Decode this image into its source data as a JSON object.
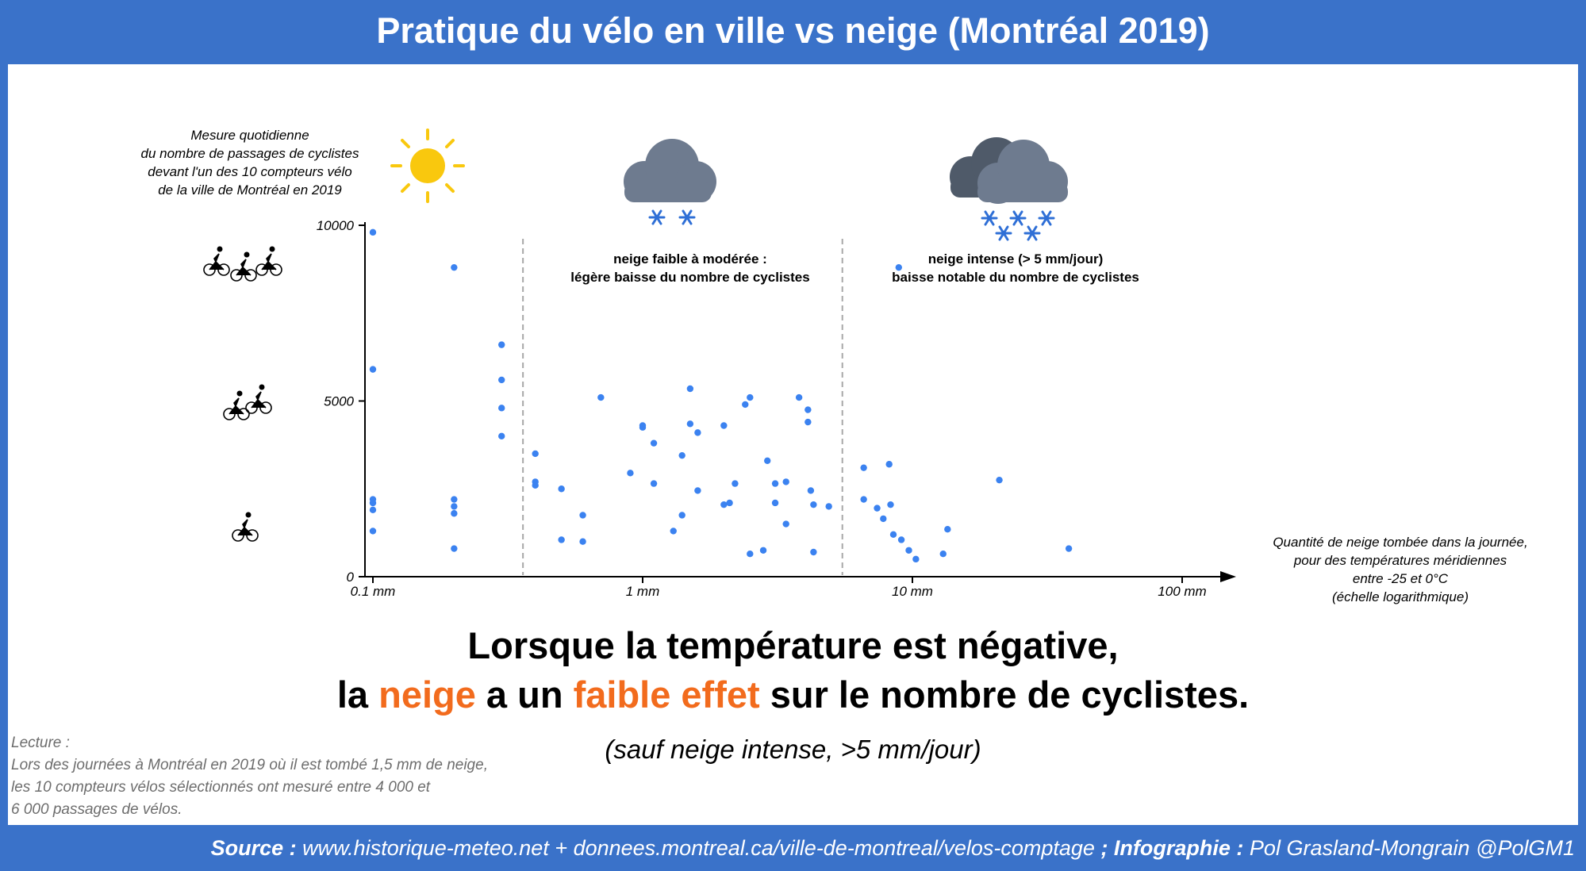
{
  "header": {
    "title": "Pratique du vélo en ville vs neige (Montréal 2019)"
  },
  "annotations": {
    "left_note": "Mesure quotidienne\ndu nombre de passages de cyclistes\ndevant l'un des 10 compteurs vélo\nde la ville de Montréal en 2019",
    "right_note": "Quantité de neige tombée dans la journée,\npour des températures méridiennes\nentre -25 et 0°C\n(échelle logarithmique)",
    "region_moderate": "neige faible à modérée :\nlégère baisse du nombre de cyclistes",
    "region_intense": "neige intense (> 5 mm/jour)\nbaisse notable du nombre de cyclistes"
  },
  "headline": {
    "line1": "Lorsque la température est négative,",
    "line2_a": "la ",
    "line2_b": "neige",
    "line2_c": " a un ",
    "line2_d": "faible effet",
    "line2_e": " sur le nombre de cyclistes.",
    "highlight_color": "#f26b1d"
  },
  "subline": "(sauf neige intense, >5 mm/jour)",
  "reading": {
    "title": "Lecture :",
    "lines": [
      "Lors des journées à Montréal en 2019 où il est tombé 1,5 mm de neige,",
      "les 10 compteurs vélos sélectionnés ont mesuré entre 4 000 et",
      "6 000 passages de vélos."
    ]
  },
  "footer": {
    "source_label": "Source :",
    "source_text": " www.historique-meteo.net + donnees.montreal.ca/ville-de-montreal/velos-comptage ",
    "credit_label": "; Infographie :",
    "credit_text": " Pol Grasland-Mongrain @PolGM1"
  },
  "colors": {
    "background": "#3a72c9",
    "point": "#3b82f0",
    "sun": "#f9c80e",
    "cloud": "#6e7b8f",
    "cloud_dark": "#4f5a69",
    "snowflake": "#2f6fd6",
    "divider": "#a8a8a8"
  },
  "icons": {
    "sun": "sun-icon",
    "cloud_light_snow": "cloud-light-snow-icon",
    "cloud_heavy_snow": "cloud-heavy-snow-icon",
    "cyclists_many": "three-cyclists-icon",
    "cyclists_mid": "two-cyclists-icon",
    "cyclists_few": "one-cyclist-icon"
  },
  "chart_data": {
    "type": "scatter",
    "x_scale": "log",
    "xlim": [
      0.1,
      150
    ],
    "ylim": [
      0,
      10000
    ],
    "x_ticks": [
      {
        "value": 0.1,
        "label": "0.1 mm"
      },
      {
        "value": 1,
        "label": "1 mm"
      },
      {
        "value": 10,
        "label": "10 mm"
      },
      {
        "value": 100,
        "label": "100 mm"
      }
    ],
    "y_ticks": [
      {
        "value": 0,
        "label": "0"
      },
      {
        "value": 5000,
        "label": "5000"
      },
      {
        "value": 10000,
        "label": "10000"
      }
    ],
    "thresholds": [
      0.36,
      5.5
    ],
    "grid": false,
    "points": [
      {
        "x": 0.1,
        "y": 9800
      },
      {
        "x": 0.1,
        "y": 5900
      },
      {
        "x": 0.1,
        "y": 2200
      },
      {
        "x": 0.1,
        "y": 2100
      },
      {
        "x": 0.1,
        "y": 1900
      },
      {
        "x": 0.1,
        "y": 1300
      },
      {
        "x": 0.2,
        "y": 8800
      },
      {
        "x": 0.2,
        "y": 2200
      },
      {
        "x": 0.2,
        "y": 2000
      },
      {
        "x": 0.2,
        "y": 1800
      },
      {
        "x": 0.2,
        "y": 800
      },
      {
        "x": 0.3,
        "y": 6600
      },
      {
        "x": 0.3,
        "y": 5600
      },
      {
        "x": 0.3,
        "y": 4800
      },
      {
        "x": 0.3,
        "y": 4000
      },
      {
        "x": 0.4,
        "y": 3500
      },
      {
        "x": 0.4,
        "y": 2700
      },
      {
        "x": 0.4,
        "y": 2600
      },
      {
        "x": 0.5,
        "y": 2500
      },
      {
        "x": 0.5,
        "y": 1050
      },
      {
        "x": 0.6,
        "y": 1750
      },
      {
        "x": 0.6,
        "y": 1000
      },
      {
        "x": 0.7,
        "y": 5100
      },
      {
        "x": 0.9,
        "y": 2950
      },
      {
        "x": 1.0,
        "y": 4300
      },
      {
        "x": 1.0,
        "y": 4250
      },
      {
        "x": 1.1,
        "y": 3800
      },
      {
        "x": 1.1,
        "y": 2650
      },
      {
        "x": 1.3,
        "y": 1300
      },
      {
        "x": 1.4,
        "y": 3450
      },
      {
        "x": 1.4,
        "y": 1750
      },
      {
        "x": 1.5,
        "y": 5350
      },
      {
        "x": 1.5,
        "y": 4350
      },
      {
        "x": 1.6,
        "y": 4100
      },
      {
        "x": 1.6,
        "y": 2450
      },
      {
        "x": 2.0,
        "y": 4300
      },
      {
        "x": 2.0,
        "y": 2050
      },
      {
        "x": 2.1,
        "y": 2100
      },
      {
        "x": 2.2,
        "y": 2650
      },
      {
        "x": 2.4,
        "y": 4900
      },
      {
        "x": 2.5,
        "y": 5100
      },
      {
        "x": 2.5,
        "y": 650
      },
      {
        "x": 2.8,
        "y": 750
      },
      {
        "x": 2.9,
        "y": 3300
      },
      {
        "x": 3.1,
        "y": 2650
      },
      {
        "x": 3.1,
        "y": 2100
      },
      {
        "x": 3.4,
        "y": 2700
      },
      {
        "x": 3.4,
        "y": 1500
      },
      {
        "x": 3.8,
        "y": 5100
      },
      {
        "x": 4.1,
        "y": 4750
      },
      {
        "x": 4.1,
        "y": 4400
      },
      {
        "x": 4.2,
        "y": 2450
      },
      {
        "x": 4.3,
        "y": 2050
      },
      {
        "x": 4.3,
        "y": 700
      },
      {
        "x": 4.9,
        "y": 2000
      },
      {
        "x": 6.6,
        "y": 3100
      },
      {
        "x": 6.6,
        "y": 2200
      },
      {
        "x": 7.4,
        "y": 1950
      },
      {
        "x": 7.8,
        "y": 1650
      },
      {
        "x": 8.2,
        "y": 3200
      },
      {
        "x": 8.3,
        "y": 2050
      },
      {
        "x": 8.5,
        "y": 1200
      },
      {
        "x": 8.9,
        "y": 8800
      },
      {
        "x": 9.1,
        "y": 1050
      },
      {
        "x": 9.7,
        "y": 750
      },
      {
        "x": 10.3,
        "y": 500
      },
      {
        "x": 13.0,
        "y": 650
      },
      {
        "x": 13.5,
        "y": 1350
      },
      {
        "x": 21.0,
        "y": 2750
      },
      {
        "x": 38.0,
        "y": 800
      }
    ]
  }
}
